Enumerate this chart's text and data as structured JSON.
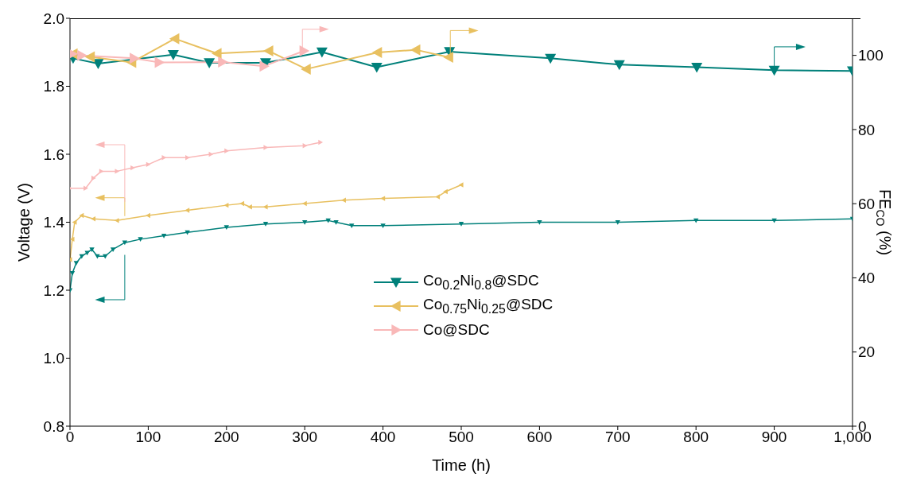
{
  "chart_data": {
    "type": "line",
    "xlabel": "Time (h)",
    "ylabel": "Voltage (V)",
    "y2label": "FE$_{CO}$ (%)",
    "xlim": [
      0,
      1000
    ],
    "xticks": [
      0,
      100,
      200,
      300,
      400,
      500,
      600,
      700,
      800,
      900,
      {
        "value": 1000,
        "label": "1,000"
      }
    ],
    "ylim": [
      0.8,
      2.0
    ],
    "yticks": [
      0.8,
      {
        "value": 1,
        "label": "1.0"
      },
      1.2,
      1.4,
      1.6,
      1.8,
      {
        "value": 2,
        "label": "2.0"
      }
    ],
    "y2lim": [
      0,
      110
    ],
    "y2ticks": [
      0,
      20,
      40,
      60,
      80,
      100
    ],
    "legend": "bottom",
    "marker": "triangle",
    "line_style": "solid",
    "series": [
      {
        "name": "Co$_{0.2}$Ni$_{0.8}$@SDC",
        "color": "#00807a",
        "axis": "y2",
        "x": [
          4,
          36,
          132,
          178,
          250,
          322,
          392,
          485,
          614,
          702,
          801,
          900,
          1000
        ],
        "values": [
          99.2,
          97.8,
          100.2,
          98,
          98,
          100.9,
          96.8,
          101,
          99.2,
          97.5,
          96.8,
          96.0,
          95.8
        ]
      },
      {
        "name": "Co$_{0.75}$Ni$_{0.25}$@SDC",
        "color": "#e8c060",
        "axis": "y2",
        "x": [
          4,
          26,
          79,
          134,
          188,
          254,
          302,
          393,
          442,
          484
        ],
        "values": [
          100.4,
          99.6,
          98.1,
          104.5,
          100.5,
          101.2,
          96.3,
          100.8,
          101.5,
          99.5
        ]
      },
      {
        "name": "Co@SDC",
        "color": "#f9b8b8",
        "axis": "y2",
        "x": [
          3,
          15,
          82,
          114,
          195,
          248,
          299
        ],
        "values": [
          100.4,
          100,
          99.2,
          98.1,
          98.2,
          97.1,
          101.2
        ]
      },
      {
        "color": "#00807a",
        "x": [
          0,
          3,
          8,
          15,
          22,
          28,
          35,
          45,
          55,
          70,
          90,
          120,
          150,
          200,
          250,
          300,
          330,
          340,
          360,
          400,
          500,
          600,
          700,
          800,
          900,
          1000
        ],
        "values": [
          1.2,
          1.25,
          1.28,
          1.3,
          1.31,
          1.32,
          1.3,
          1.3,
          1.32,
          1.34,
          1.35,
          1.36,
          1.37,
          1.385,
          1.395,
          1.4,
          1.405,
          1.4,
          1.39,
          1.39,
          1.395,
          1.4,
          1.4,
          1.405,
          1.405,
          1.41
        ]
      },
      {
        "color": "#e8c060",
        "x": [
          0,
          3,
          6,
          15,
          30,
          60,
          100,
          150,
          200,
          220,
          230,
          250,
          300,
          350,
          400,
          470,
          480,
          500
        ],
        "values": [
          1.29,
          1.35,
          1.4,
          1.42,
          1.41,
          1.405,
          1.42,
          1.435,
          1.45,
          1.455,
          1.445,
          1.445,
          1.455,
          1.465,
          1.47,
          1.475,
          1.49,
          1.51
        ]
      },
      {
        "color": "#f9b8b8",
        "x": [
          0,
          20,
          30,
          40,
          60,
          80,
          100,
          120,
          150,
          180,
          200,
          250,
          300,
          320
        ],
        "values": [
          1.5,
          1.5,
          1.53,
          1.55,
          1.55,
          1.56,
          1.57,
          1.59,
          1.59,
          1.6,
          1.61,
          1.62,
          1.625,
          1.635
        ]
      }
    ]
  }
}
